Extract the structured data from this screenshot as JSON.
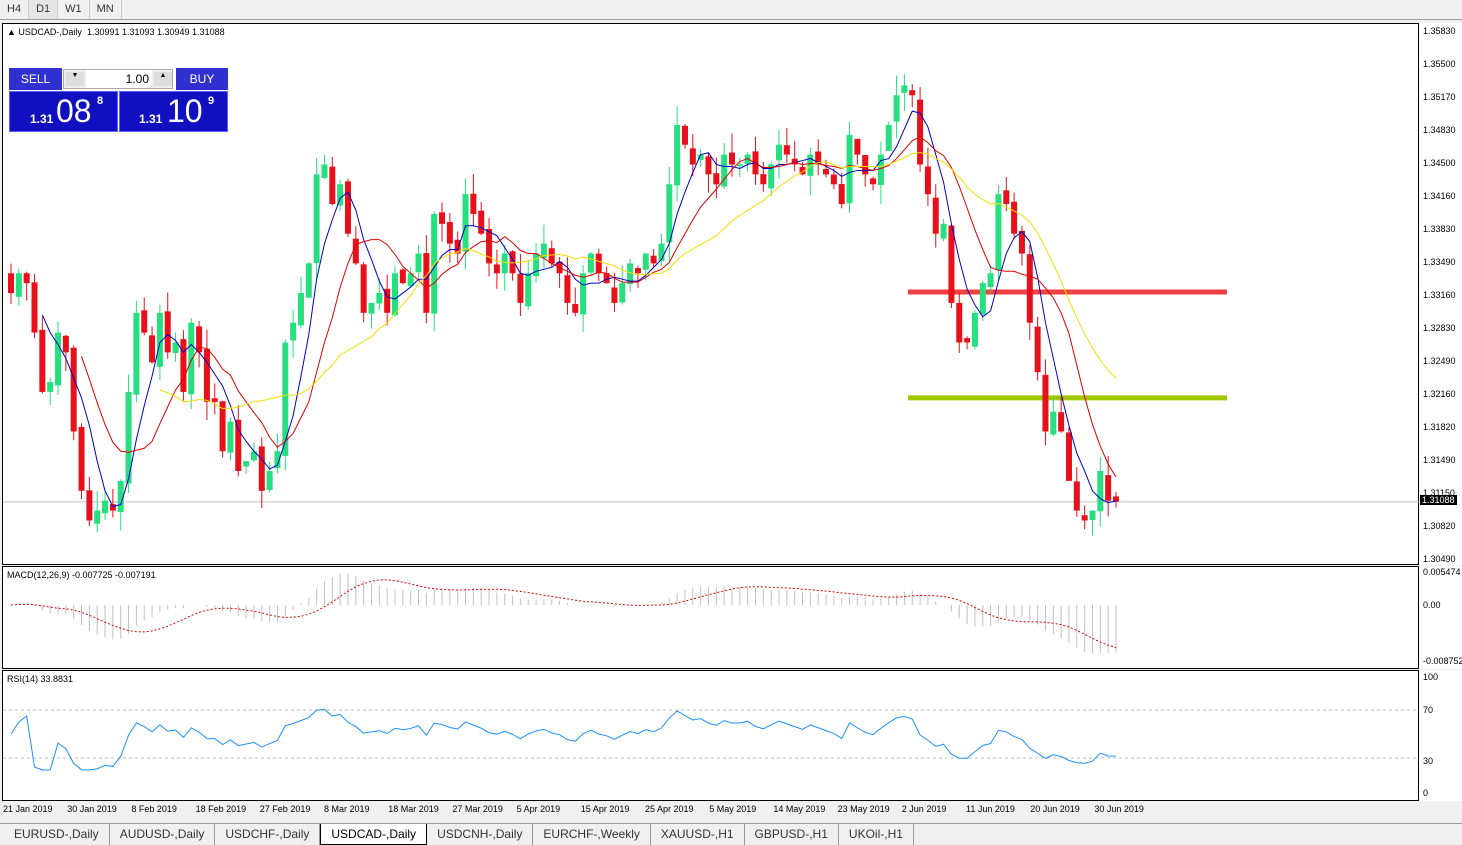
{
  "timeframes": [
    "H4",
    "D1",
    "W1",
    "MN"
  ],
  "active_timeframe": "D1",
  "chart": {
    "title": "USDCAD-,Daily",
    "ohlc": "1.30991 1.31093 1.30949 1.31088",
    "current_price": "1.31088"
  },
  "trade_panel": {
    "sell_label": "SELL",
    "buy_label": "BUY",
    "volume": "1.00",
    "sell_prefix": "1.31",
    "sell_big": "08",
    "sell_sup": "8",
    "buy_prefix": "1.31",
    "buy_big": "10",
    "buy_sup": "9"
  },
  "price_axis": [
    "1.35830",
    "1.35500",
    "1.35170",
    "1.34830",
    "1.34500",
    "1.34160",
    "1.33830",
    "1.33490",
    "1.33160",
    "1.32830",
    "1.32490",
    "1.32160",
    "1.31820",
    "1.31490",
    "1.31150",
    "1.30820",
    "1.30490"
  ],
  "macd": {
    "label": "MACD(12,26,9) -0.007725 -0.007191",
    "axis": [
      "0.005474",
      "0.00",
      "-0.008752"
    ]
  },
  "rsi": {
    "label": "RSI(14) 33.8831",
    "axis": [
      "100",
      "70",
      "30",
      "0"
    ]
  },
  "date_axis": [
    "21 Jan 2019",
    "30 Jan 2019",
    "8 Feb 2019",
    "18 Feb 2019",
    "27 Feb 2019",
    "8 Mar 2019",
    "18 Mar 2019",
    "27 Mar 2019",
    "5 Apr 2019",
    "15 Apr 2019",
    "25 Apr 2019",
    "5 May 2019",
    "14 May 2019",
    "23 May 2019",
    "2 Jun 2019",
    "11 Jun 2019",
    "20 Jun 2019",
    "30 Jun 2019"
  ],
  "tabs": [
    "EURUSD-,Daily",
    "AUDUSD-,Daily",
    "USDCHF-,Daily",
    "USDCAD-,Daily",
    "USDCNH-,Daily",
    "EURCHF-,Weekly",
    "XAUUSD-,H1",
    "GBPUSD-,H1",
    "UKOil-,H1"
  ],
  "active_tab": "USDCAD-,Daily",
  "colors": {
    "bull": "#26e07f",
    "bear": "#e8101a",
    "ma_fast": "#0000c8",
    "ma_mid": "#e00000",
    "ma_slow": "#f0e000",
    "resistance": "#f04040",
    "support": "#a0c800",
    "rsi_line": "#1e90ff"
  },
  "horizontal_lines": [
    {
      "price": 1.3321,
      "color": "#f04040"
    },
    {
      "price": 1.3214,
      "color": "#a0c800"
    }
  ],
  "chart_data": {
    "type": "candlestick",
    "closes": [
      1.332,
      1.334,
      1.333,
      1.328,
      1.322,
      1.323,
      1.328,
      1.326,
      1.318,
      1.312,
      1.309,
      1.31,
      1.311,
      1.31,
      1.313,
      1.322,
      1.33,
      1.328,
      1.325,
      1.33,
      1.326,
      1.327,
      1.322,
      1.329,
      1.326,
      1.321,
      1.321,
      1.316,
      1.319,
      1.314,
      1.315,
      1.316,
      1.312,
      1.314,
      1.316,
      1.327,
      1.329,
      1.332,
      1.335,
      1.344,
      1.345,
      1.341,
      1.343,
      1.338,
      1.335,
      1.33,
      1.331,
      1.332,
      1.33,
      1.334,
      1.333,
      1.334,
      1.336,
      1.33,
      1.34,
      1.339,
      1.337,
      1.336,
      1.342,
      1.34,
      1.338,
      1.335,
      1.334,
      1.336,
      1.334,
      1.331,
      1.334,
      1.336,
      1.337,
      1.335,
      1.334,
      1.331,
      1.33,
      1.334,
      1.336,
      1.334,
      1.333,
      1.331,
      1.333,
      1.335,
      1.334,
      1.336,
      1.335,
      1.337,
      1.343,
      1.349,
      1.347,
      1.345,
      1.346,
      1.344,
      1.343,
      1.346,
      1.345,
      1.345,
      1.346,
      1.344,
      1.343,
      1.345,
      1.347,
      1.346,
      1.345,
      1.344,
      1.346,
      1.345,
      1.344,
      1.343,
      1.341,
      1.348,
      1.346,
      1.344,
      1.343,
      1.346,
      1.349,
      1.352,
      1.353,
      1.352,
      1.345,
      1.342,
      1.338,
      1.339,
      1.331,
      1.327,
      1.327,
      1.33,
      1.333,
      1.334,
      1.342,
      1.341,
      1.338,
      1.336,
      1.329,
      1.324,
      1.318,
      1.32,
      1.318,
      1.313,
      1.31,
      1.309,
      1.31,
      1.314,
      1.311,
      1.3109
    ],
    "ylim": [
      1.3049,
      1.3583
    ]
  }
}
